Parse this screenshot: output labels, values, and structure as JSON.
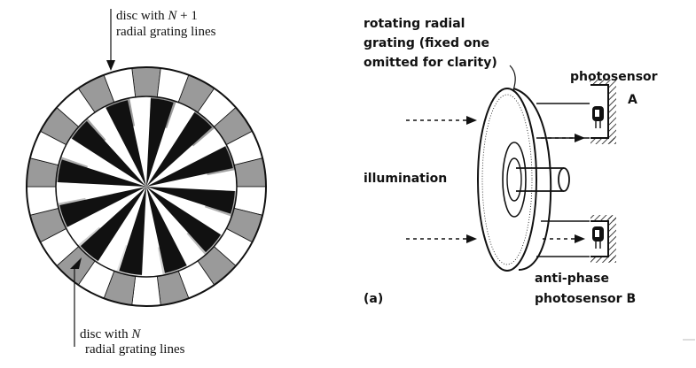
{
  "left_figure": {
    "label_top_line1": "disc with ",
    "label_top_var": "N",
    "label_top_line1_suffix": " + 1",
    "label_top_line2": "radial grating lines",
    "label_bottom_line1": "disc with ",
    "label_bottom_var": "N",
    "label_bottom_line2": "radial grating lines"
  },
  "right_figure": {
    "grating_label_line1": "rotating radial",
    "grating_label_line2": "grating (fixed one",
    "grating_label_line3": "omitted for clarity)",
    "sensor_a_line1": "photosensor",
    "sensor_a_line2": "A",
    "illumination": "illumination",
    "sensor_b_line1": "anti-phase",
    "sensor_b_line2": "photosensor B",
    "panel_label": "(a)"
  },
  "colors": {
    "ink": "#111111",
    "grey_segment": "#9a9a9a",
    "paper": "#ffffff"
  }
}
